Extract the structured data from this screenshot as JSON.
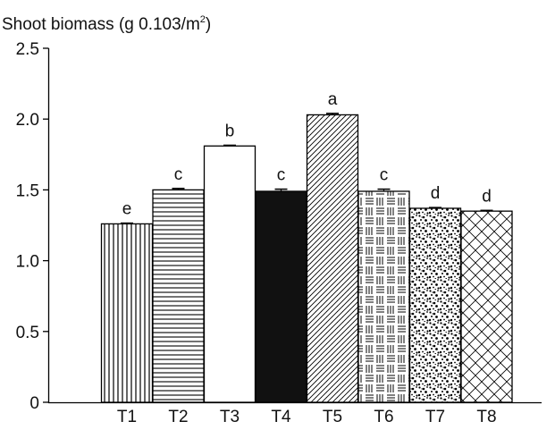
{
  "chart_data": {
    "type": "bar",
    "ylabel": "Shoot biomass (g 0.103/m",
    "ylabel_sup": "2",
    "ylabel_close": ")",
    "ylim": [
      0,
      2.5
    ],
    "y_ticks": [
      0,
      0.5,
      1.0,
      1.5,
      2.0,
      2.5
    ],
    "y_tick_labels": [
      "0",
      "0.5",
      "1.0",
      "1.5",
      "2.0",
      "2.5"
    ],
    "categories": [
      "T1",
      "T2",
      "T3",
      "T4",
      "T5",
      "T6",
      "T7",
      "T8"
    ],
    "values": [
      1.26,
      1.5,
      1.81,
      1.49,
      2.03,
      1.49,
      1.37,
      1.35
    ],
    "errors": [
      0.005,
      0.01,
      0.005,
      0.015,
      0.01,
      0.015,
      0.005,
      0.005
    ],
    "significance_letters": [
      "e",
      "c",
      "b",
      "c",
      "a",
      "c",
      "d",
      "d"
    ],
    "fill_patterns": [
      "vertical-lines",
      "horizontal-lines",
      "white",
      "solid-black",
      "diagonal-lines",
      "mixed-line-blocks",
      "speckle",
      "crosshatch"
    ],
    "bar_edge_color": "#000000",
    "grid": false,
    "legend": "none"
  }
}
